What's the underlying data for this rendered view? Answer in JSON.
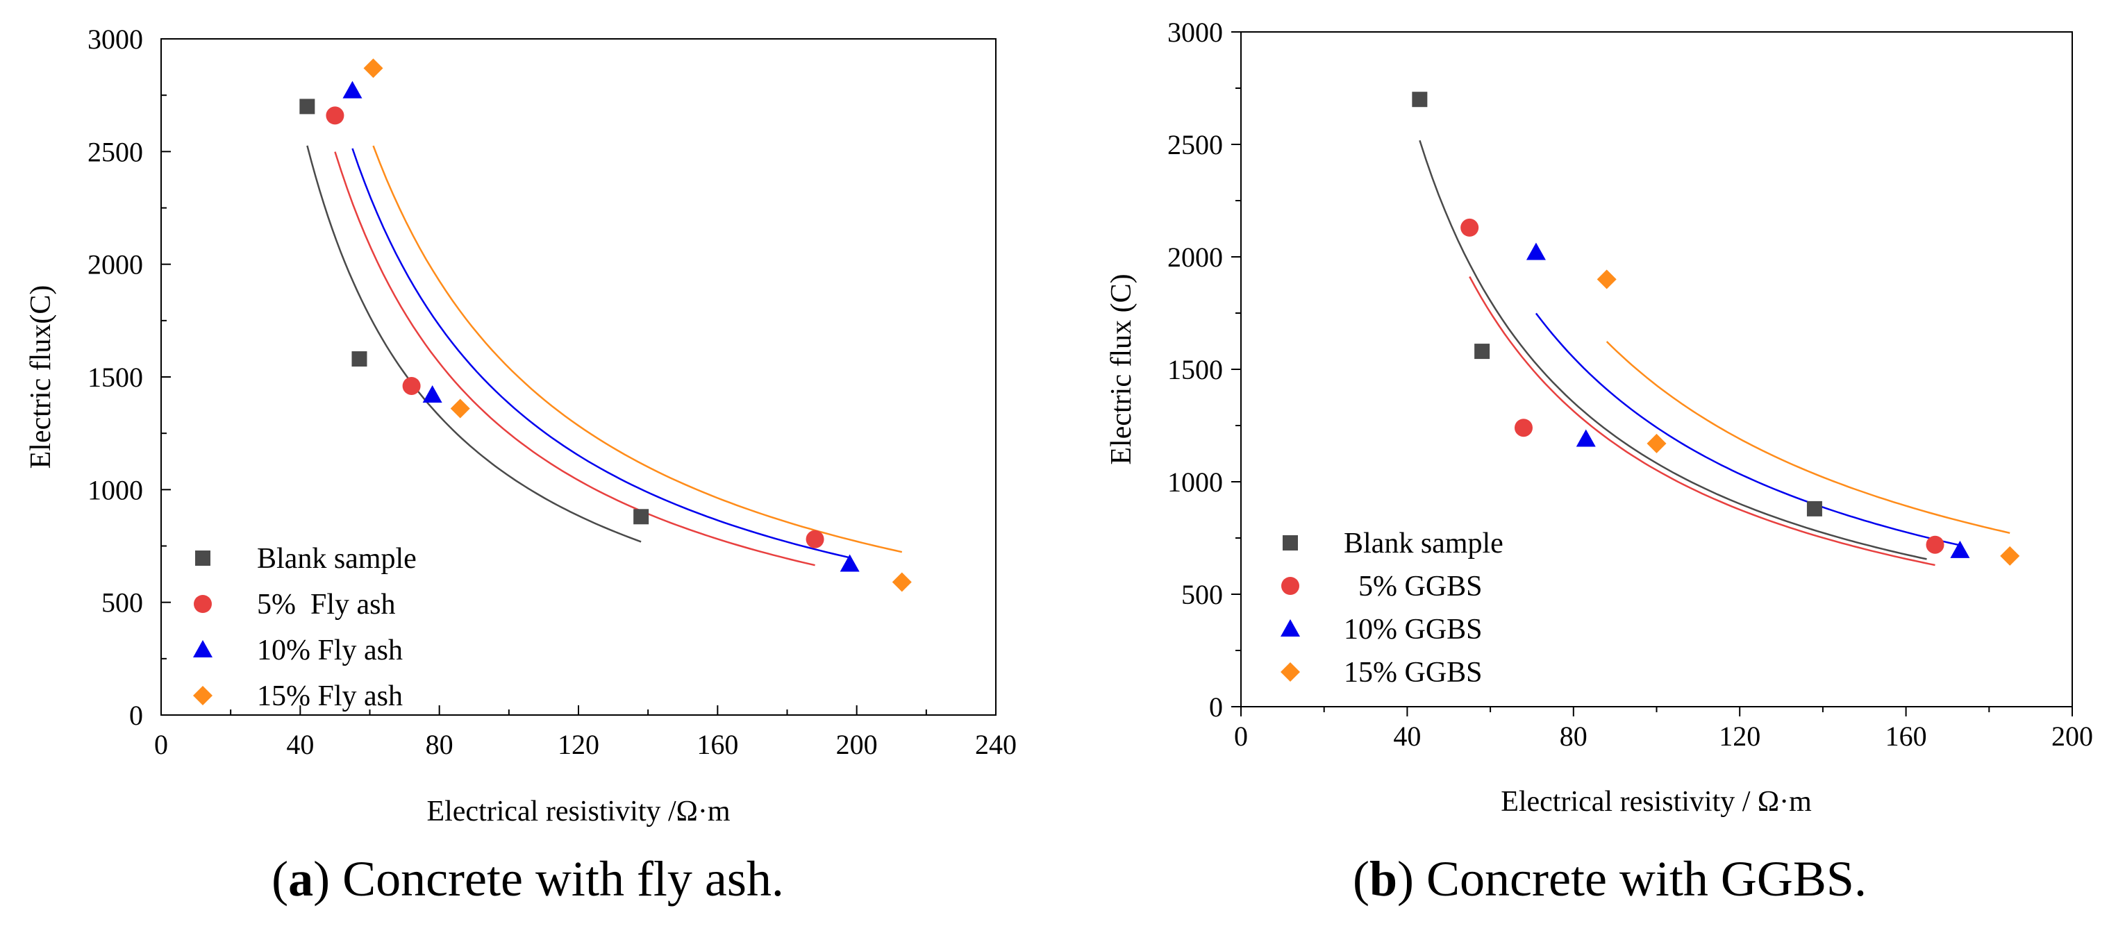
{
  "chart_data": [
    {
      "type": "scatter",
      "panel_letter": "a",
      "caption": "Concrete with fly ash.",
      "title": "",
      "xlabel": "Electrical resistivity /Ω·m",
      "ylabel": "Electric flux(C)",
      "xlim": [
        0,
        240
      ],
      "ylim": [
        0,
        3000
      ],
      "x_ticks": [
        0,
        40,
        80,
        120,
        160,
        200,
        240
      ],
      "x_tick_labels": [
        "0",
        "40",
        "80",
        "120",
        "160",
        "200",
        "240"
      ],
      "y_ticks": [
        0,
        500,
        1000,
        1500,
        2000,
        2500,
        3000
      ],
      "y_tick_labels": [
        "0",
        "500",
        "1000",
        "1500",
        "2000",
        "2500",
        "3000"
      ],
      "legend_position": "bottom-left",
      "series": [
        {
          "name": "Blank sample",
          "marker": "square",
          "color": "#4a4a4a",
          "x": [
            42,
            57,
            138
          ],
          "y": [
            2700,
            1580,
            880
          ],
          "fit": {
            "x_from": 42,
            "x_to": 138
          }
        },
        {
          "name": "5%  Fly ash",
          "marker": "circle",
          "color": "#e8403f",
          "x": [
            50,
            72,
            188
          ],
          "y": [
            2660,
            1460,
            780
          ],
          "fit": {
            "x_from": 50,
            "x_to": 188
          }
        },
        {
          "name": "10% Fly ash",
          "marker": "triangle",
          "color": "#0000ee",
          "x": [
            55,
            78,
            198
          ],
          "y": [
            2770,
            1420,
            670
          ],
          "fit": {
            "x_from": 55,
            "x_to": 198
          }
        },
        {
          "name": "15% Fly ash",
          "marker": "diamond",
          "color": "#ff8c1a",
          "x": [
            61,
            86,
            213
          ],
          "y": [
            2870,
            1360,
            590
          ],
          "fit": {
            "x_from": 61,
            "x_to": 213
          }
        }
      ]
    },
    {
      "type": "scatter",
      "panel_letter": "b",
      "caption": "Concrete with GGBS.",
      "title": "",
      "xlabel": "Electrical resistivity / Ω·m",
      "ylabel": "Electric flux (C)",
      "xlim": [
        0,
        200
      ],
      "ylim": [
        0,
        3000
      ],
      "x_ticks": [
        0,
        40,
        80,
        120,
        160,
        200
      ],
      "x_tick_labels": [
        "0",
        "40",
        "80",
        "120",
        "160",
        "200"
      ],
      "y_ticks": [
        0,
        500,
        1000,
        1500,
        2000,
        2500,
        3000
      ],
      "y_tick_labels": [
        "0",
        "500",
        "1000",
        "1500",
        "2000",
        "2500",
        "3000"
      ],
      "legend_position": "bottom-left",
      "series": [
        {
          "name": "Blank sample",
          "marker": "square",
          "color": "#4a4a4a",
          "x": [
            43,
            58,
            138
          ],
          "y": [
            2700,
            1580,
            880
          ],
          "fit": {
            "x_from": 43,
            "x_to": 165
          }
        },
        {
          "name": "  5% GGBS",
          "marker": "circle",
          "color": "#e8403f",
          "x": [
            55,
            68,
            167
          ],
          "y": [
            2130,
            1240,
            720
          ],
          "fit": {
            "x_from": 55,
            "x_to": 167
          }
        },
        {
          "name": "10% GGBS",
          "marker": "triangle",
          "color": "#0000ee",
          "x": [
            71,
            83,
            173
          ],
          "y": [
            2020,
            1190,
            695
          ],
          "fit": {
            "x_from": 71,
            "x_to": 173
          }
        },
        {
          "name": "15% GGBS",
          "marker": "diamond",
          "color": "#ff8c1a",
          "x": [
            88,
            100,
            185
          ],
          "y": [
            1900,
            1170,
            670
          ],
          "fit": {
            "x_from": 88,
            "x_to": 185
          }
        }
      ]
    }
  ]
}
